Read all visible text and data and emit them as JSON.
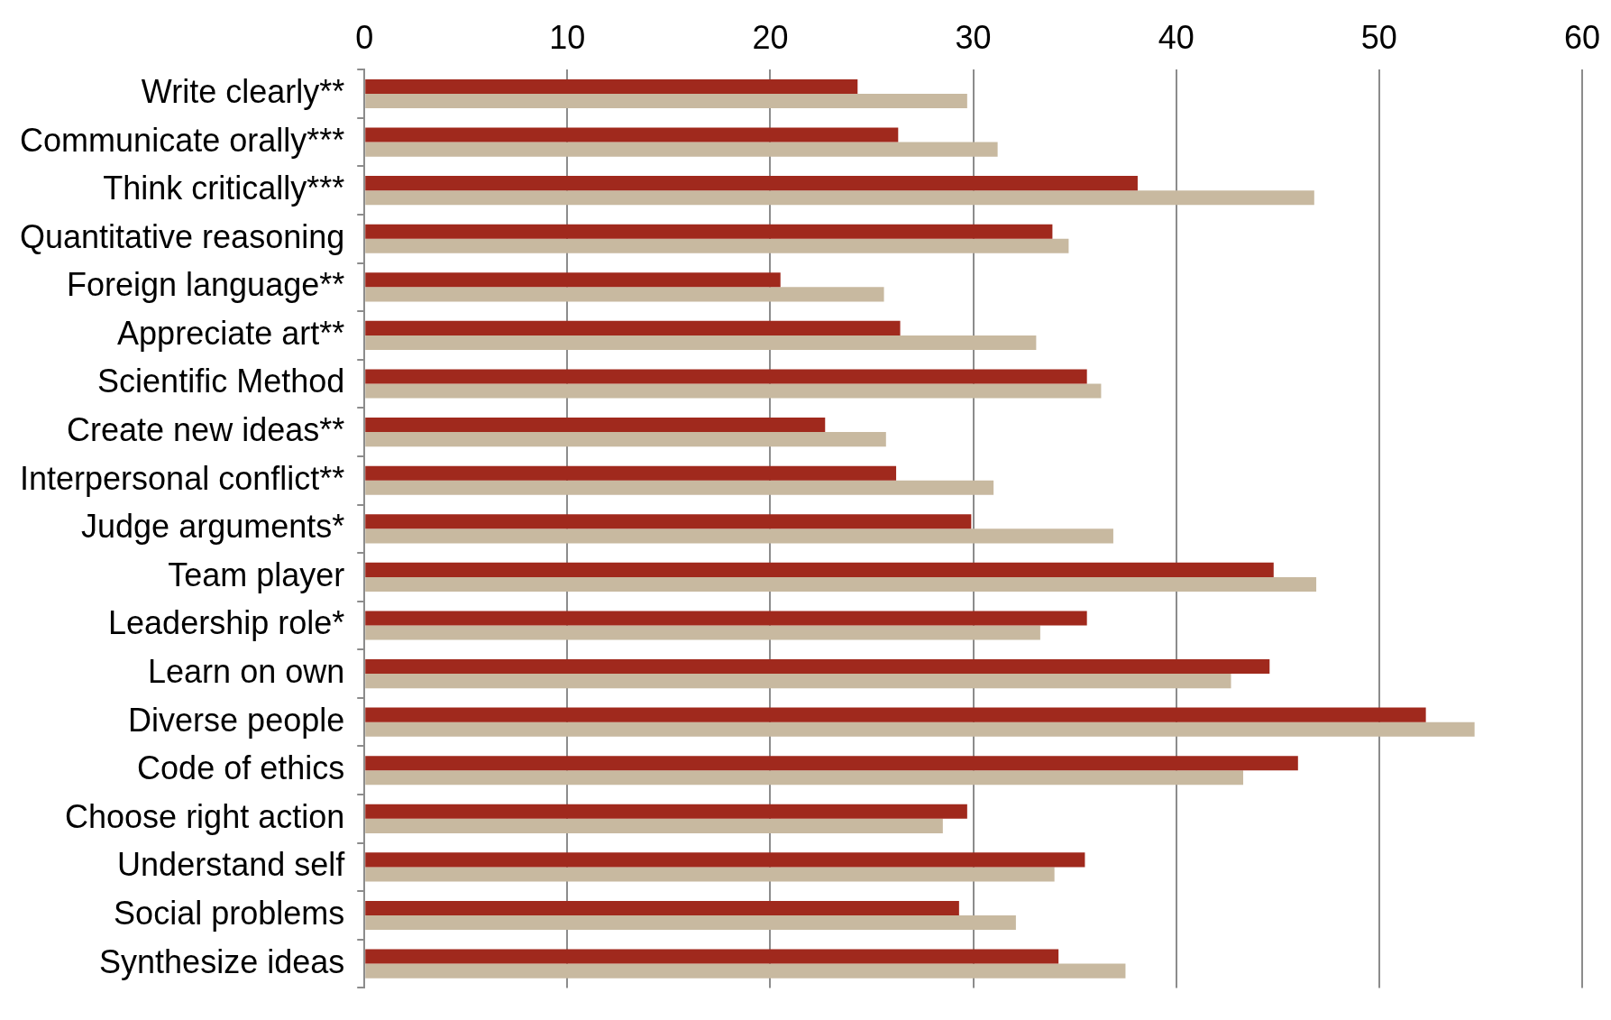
{
  "chart_data": {
    "type": "bar",
    "orientation": "horizontal",
    "categories": [
      "Write clearly**",
      "Communicate orally***",
      "Think critically***",
      "Quantitative reasoning",
      "Foreign language**",
      "Appreciate art**",
      "Scientific Method",
      "Create new ideas**",
      "Interpersonal conflict**",
      "Judge arguments*",
      "Team player",
      "Leadership role*",
      "Learn on own",
      "Diverse people",
      "Code of ethics",
      "Choose right action",
      "Understand self",
      "Social problems",
      "Synthesize ideas"
    ],
    "series": [
      {
        "color": "#a0291d",
        "values": [
          24.3,
          26.3,
          38.1,
          33.9,
          20.5,
          26.4,
          35.6,
          22.7,
          26.2,
          29.9,
          44.8,
          35.6,
          44.6,
          52.3,
          46.0,
          29.7,
          35.5,
          29.3,
          34.2
        ]
      },
      {
        "color": "#c8b9a0",
        "values": [
          29.7,
          31.2,
          46.8,
          34.7,
          25.6,
          33.1,
          36.3,
          25.7,
          31.0,
          36.9,
          46.9,
          33.3,
          42.7,
          54.7,
          43.3,
          28.5,
          34.0,
          32.1,
          37.5
        ]
      }
    ],
    "xlim": [
      0,
      60
    ],
    "xticks": [
      0,
      10,
      20,
      30,
      40,
      50,
      60
    ],
    "grid": "x",
    "legend": false
  }
}
